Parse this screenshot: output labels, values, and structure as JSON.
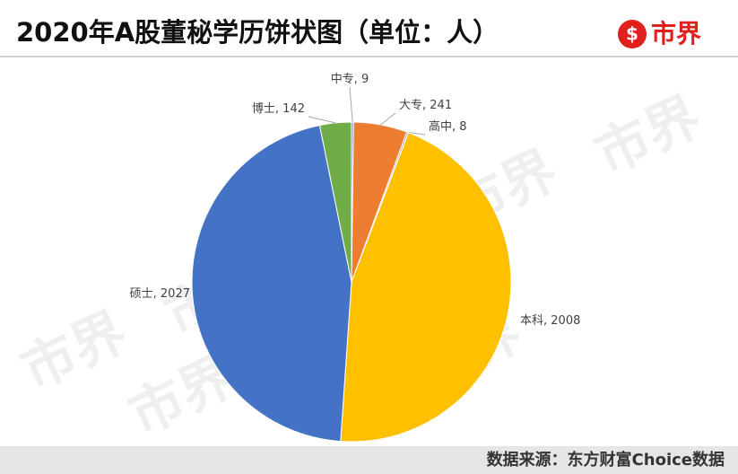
{
  "header": {
    "title": "2020年A股董秘学历饼状图（单位：人）",
    "logo": "市界"
  },
  "chart_data": {
    "type": "pie",
    "categories": [
      "中专",
      "大专",
      "高中",
      "本科",
      "硕士",
      "博士"
    ],
    "values": [
      9,
      241,
      8,
      2008,
      2027,
      142
    ],
    "colors": [
      "#5b9bd5",
      "#ed7d31",
      "#a5a5a5",
      "#ffc000",
      "#4472c4",
      "#70ad47"
    ],
    "label_separator": ", "
  },
  "watermark": "市界",
  "footer": {
    "source": "数据来源：东方财富Choice数据"
  }
}
